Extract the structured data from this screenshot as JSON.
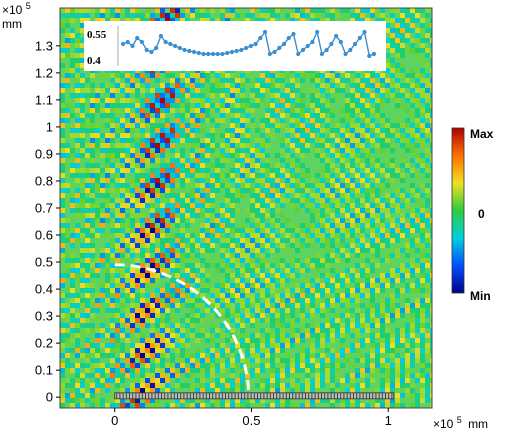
{
  "chart_data": {
    "type": "heatmap",
    "title": "",
    "x_axis": {
      "multiplier": "×10",
      "exponent": "5",
      "unit": "mm",
      "range": [
        -0.2,
        1.16
      ],
      "ticks": [
        0,
        0.5,
        1
      ],
      "tick_labels": [
        "0",
        "0.5",
        "1"
      ]
    },
    "y_axis": {
      "multiplier": "×10",
      "exponent": "5",
      "unit": "mm",
      "range": [
        -0.04,
        1.44
      ],
      "ticks": [
        0,
        0.1,
        0.2,
        0.3,
        0.4,
        0.5,
        0.6,
        0.7,
        0.8,
        0.9,
        1,
        1.1,
        1.2,
        1.3
      ],
      "tick_labels": [
        "0",
        "0.1",
        "0.2",
        "0.3",
        "0.4",
        "0.5",
        "0.6",
        "0.7",
        "0.8",
        "0.9",
        "1",
        "1.1",
        "1.2",
        "1.3"
      ]
    },
    "colorbar": {
      "max_label": "Max",
      "mid_label": "0",
      "min_label": "Min",
      "colormap": [
        "#00008b",
        "#0050ff",
        "#00d0e0",
        "#2ecc40",
        "#f0e020",
        "#ff7000",
        "#b00000"
      ]
    },
    "field_color": "#5fd35f",
    "annotations": {
      "dashed_arc": {
        "center": [
          0,
          0
        ],
        "radius": 0.49,
        "color": "#ffffff",
        "style": "dashed"
      },
      "array_strip": {
        "x_range": [
          0,
          1.02
        ],
        "y": 0.005,
        "color": "#333333"
      }
    },
    "inset": {
      "type": "line",
      "marker": "circle",
      "color": "#3a8fd0",
      "yticks": [
        0.4,
        0.55
      ],
      "ytick_labels": [
        "0.4",
        "0.55"
      ],
      "ylim": [
        0.38,
        0.58
      ],
      "values": [
        0.49,
        0.5,
        0.48,
        0.52,
        0.5,
        0.46,
        0.45,
        0.47,
        0.53,
        0.5,
        0.49,
        0.48,
        0.47,
        0.46,
        0.455,
        0.45,
        0.445,
        0.44,
        0.44,
        0.44,
        0.44,
        0.44,
        0.445,
        0.45,
        0.455,
        0.46,
        0.47,
        0.48,
        0.49,
        0.52,
        0.55,
        0.44,
        0.45,
        0.47,
        0.49,
        0.52,
        0.54,
        0.44,
        0.46,
        0.48,
        0.5,
        0.55,
        0.44,
        0.46,
        0.49,
        0.53,
        0.5,
        0.44,
        0.46,
        0.49,
        0.52,
        0.55,
        0.43,
        0.44
      ]
    }
  }
}
